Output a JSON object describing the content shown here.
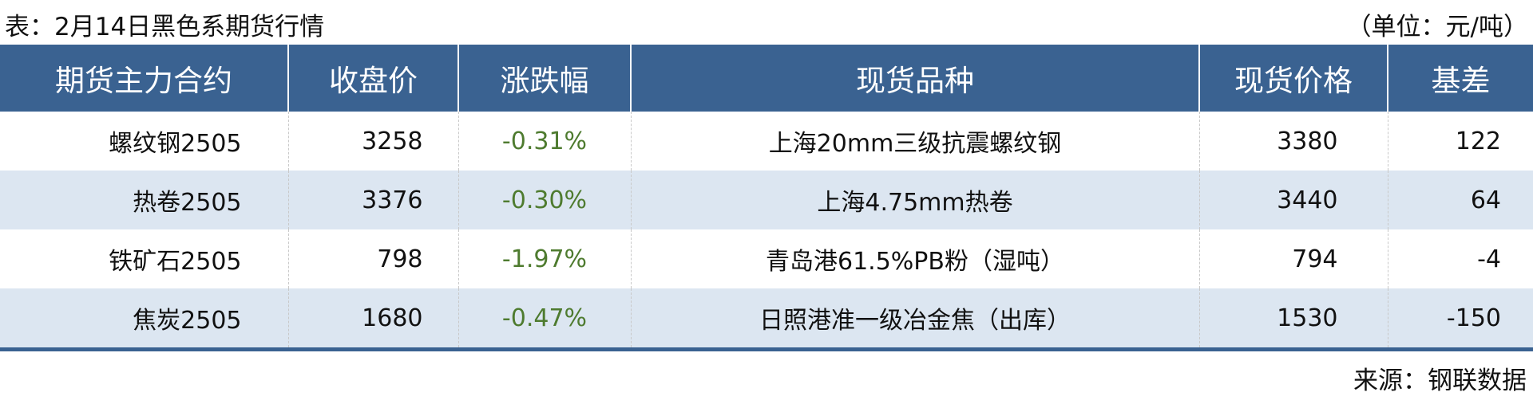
{
  "title": "表：2月14日黑色系期货行情",
  "unit": "（单位：元/吨）",
  "columns": [
    "期货主力合约",
    "收盘价",
    "涨跌幅",
    "现货品种",
    "现货价格",
    "基差"
  ],
  "rows": [
    {
      "contract": "螺纹钢2505",
      "close": "3258",
      "change": "-0.31%",
      "spot": "上海20mm三级抗震螺纹钢",
      "spot_price": "3380",
      "basis": "122"
    },
    {
      "contract": "热卷2505",
      "close": "3376",
      "change": "-0.30%",
      "spot": "上海4.75mm热卷",
      "spot_price": "3440",
      "basis": "64"
    },
    {
      "contract": "铁矿石2505",
      "close": "798",
      "change": "-1.97%",
      "spot": "青岛港61.5%PB粉（湿吨）",
      "spot_price": "794",
      "basis": "-4"
    },
    {
      "contract": "焦炭2505",
      "close": "1680",
      "change": "-0.47%",
      "spot": "日照港准一级冶金焦（出库）",
      "spot_price": "1530",
      "basis": "-150"
    }
  ],
  "source": "来源：钢联数据",
  "colors": {
    "header": "#3A6291",
    "alt_row": "#DCE6F1",
    "change_negative": "#4E7B2F"
  }
}
